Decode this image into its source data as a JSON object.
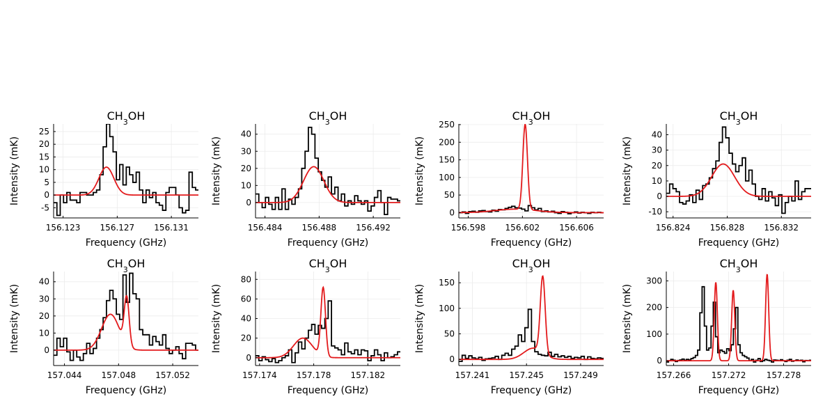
{
  "chart_data": [
    {
      "type": "line",
      "title": "CH3OH",
      "xlabel": "Frequency (GHz)",
      "ylabel": "Intensity (mK)",
      "xlim": [
        156.1223,
        156.133
      ],
      "ylim": [
        -9,
        28
      ],
      "xticks": [
        156.123,
        156.127,
        156.131
      ],
      "xtick_labels": [
        "156.123",
        "156.127",
        "156.131"
      ],
      "yticks": [
        -5,
        0,
        5,
        10,
        15,
        20,
        25
      ],
      "ytick_labels": [
        "-5",
        "0",
        "5",
        "10",
        "15",
        "20",
        "25"
      ],
      "grid": true,
      "series": [
        {
          "color": "#000000",
          "style": "step",
          "x0": 156.1223,
          "dx": 0.000244,
          "values": [
            -3,
            -8,
            0,
            -3,
            1,
            -2,
            -2,
            -3,
            1,
            1,
            0,
            0,
            1,
            2,
            8,
            19,
            28,
            23,
            17,
            6,
            12,
            4,
            11,
            8,
            5,
            9,
            2,
            -3,
            2,
            -1,
            1,
            -3,
            -4,
            -6,
            1,
            3,
            3,
            0,
            -5,
            -7,
            -6,
            9,
            3,
            2
          ]
        },
        {
          "color": "#e31a1c",
          "style": "line",
          "gaussians": [
            {
              "center": 156.1262,
              "amplitude": 11,
              "sigma": 0.00055
            }
          ],
          "baseline": 0
        }
      ]
    },
    {
      "type": "line",
      "title": "CH3OH",
      "xlabel": "Frequency (GHz)",
      "ylabel": "Intensity (mK)",
      "xlim": [
        156.4833,
        156.494
      ],
      "ylim": [
        -9,
        46
      ],
      "xticks": [
        156.484,
        156.488,
        156.492
      ],
      "xtick_labels": [
        "156.484",
        "156.488",
        "156.492"
      ],
      "yticks": [
        0,
        10,
        20,
        30,
        40
      ],
      "ytick_labels": [
        "0",
        "10",
        "20",
        "30",
        "40"
      ],
      "grid": true,
      "series": [
        {
          "color": "#000000",
          "style": "step",
          "x0": 156.4833,
          "dx": 0.000244,
          "values": [
            5,
            0,
            -3,
            3,
            -1,
            -4,
            3,
            -4,
            8,
            -4,
            2,
            -1,
            3,
            8,
            20,
            30,
            44,
            40,
            26,
            18,
            13,
            9,
            15,
            5,
            9,
            1,
            5,
            -2,
            1,
            -1,
            4,
            1,
            -1,
            1,
            -5,
            -2,
            3,
            7,
            0,
            -7,
            3,
            2,
            2,
            1
          ]
        },
        {
          "color": "#e31a1c",
          "style": "line",
          "gaussians": [
            {
              "center": 156.4876,
              "amplitude": 21,
              "sigma": 0.00075
            }
          ],
          "baseline": 0
        }
      ]
    },
    {
      "type": "line",
      "title": "CH3OH",
      "xlabel": "Frequency (GHz)",
      "ylabel": "Intensity (mK)",
      "xlim": [
        156.5973,
        156.608
      ],
      "ylim": [
        -15,
        252
      ],
      "xticks": [
        156.598,
        156.602,
        156.606
      ],
      "xtick_labels": [
        "156.598",
        "156.602",
        "156.606"
      ],
      "yticks": [
        0,
        50,
        100,
        150,
        200,
        250
      ],
      "ytick_labels": [
        "0",
        "50",
        "100",
        "150",
        "200",
        "250"
      ],
      "grid": true,
      "series": [
        {
          "color": "#000000",
          "style": "step",
          "x0": 156.5973,
          "dx": 0.000244,
          "values": [
            0,
            2,
            -2,
            3,
            4,
            1,
            5,
            6,
            3,
            2,
            7,
            4,
            9,
            8,
            12,
            15,
            18,
            14,
            13,
            10,
            5,
            20,
            14,
            8,
            12,
            3,
            5,
            2,
            4,
            0,
            -2,
            3,
            1,
            -3,
            0,
            2,
            -1,
            1,
            0,
            -2,
            1,
            0,
            1,
            0
          ]
        },
        {
          "color": "#e31a1c",
          "style": "line",
          "gaussians": [
            {
              "center": 156.6022,
              "amplitude": 242,
              "sigma": 0.00017
            },
            {
              "center": 156.6015,
              "amplitude": 10,
              "sigma": 0.0015
            }
          ],
          "baseline": 0
        }
      ]
    },
    {
      "type": "line",
      "title": "CH3OH",
      "xlabel": "Frequency (GHz)",
      "ylabel": "Intensity (mK)",
      "xlim": [
        156.8235,
        156.8342
      ],
      "ylim": [
        -14,
        47
      ],
      "xticks": [
        156.824,
        156.828,
        156.832
      ],
      "xtick_labels": [
        "156.824",
        "156.828",
        "156.832"
      ],
      "yticks": [
        -10,
        0,
        10,
        20,
        30,
        40
      ],
      "ytick_labels": [
        "-10",
        "0",
        "10",
        "20",
        "30",
        "40"
      ],
      "grid": true,
      "series": [
        {
          "color": "#000000",
          "style": "step",
          "x0": 156.8235,
          "dx": 0.000244,
          "values": [
            2,
            8,
            5,
            3,
            -4,
            -5,
            -3,
            1,
            -4,
            4,
            -2,
            7,
            8,
            12,
            18,
            23,
            35,
            45,
            38,
            28,
            21,
            16,
            20,
            25,
            10,
            17,
            8,
            0,
            -2,
            5,
            -3,
            3,
            -1,
            -6,
            1,
            -11,
            -4,
            0,
            -3,
            10,
            -2,
            3,
            5,
            5
          ]
        },
        {
          "color": "#e31a1c",
          "style": "line",
          "gaussians": [
            {
              "center": 156.8277,
              "amplitude": 21,
              "sigma": 0.00085
            }
          ],
          "baseline": 0
        }
      ]
    },
    {
      "type": "line",
      "title": "CH3OH",
      "xlabel": "Frequency (GHz)",
      "ylabel": "Intensity (mK)",
      "xlim": [
        157.0432,
        157.0539
      ],
      "ylim": [
        -9,
        46
      ],
      "xticks": [
        157.044,
        157.048,
        157.052
      ],
      "xtick_labels": [
        "157.044",
        "157.048",
        "157.052"
      ],
      "yticks": [
        0,
        10,
        20,
        30,
        40
      ],
      "ytick_labels": [
        "0",
        "10",
        "20",
        "30",
        "40"
      ],
      "grid": true,
      "series": [
        {
          "color": "#000000",
          "style": "step",
          "x0": 157.0432,
          "dx": 0.000244,
          "values": [
            -3,
            7,
            2,
            7,
            -1,
            -6,
            0,
            -4,
            -6,
            -2,
            4,
            -2,
            1,
            7,
            12,
            19,
            29,
            35,
            30,
            21,
            18,
            44,
            28,
            45,
            33,
            30,
            12,
            9,
            9,
            3,
            8,
            5,
            3,
            9,
            1,
            -2,
            0,
            2,
            -2,
            -5,
            4,
            4,
            3,
            0
          ]
        },
        {
          "color": "#e31a1c",
          "style": "line",
          "gaussians": [
            {
              "center": 157.0474,
              "amplitude": 21,
              "sigma": 0.00065
            },
            {
              "center": 157.0486,
              "amplitude": 28,
              "sigma": 0.00018
            }
          ],
          "baseline": 0
        }
      ]
    },
    {
      "type": "line",
      "title": "CH3OH",
      "xlabel": "Frequency (GHz)",
      "ylabel": "Intensity (mK)",
      "xlim": [
        157.1737,
        157.1844
      ],
      "ylim": [
        -8,
        88
      ],
      "xticks": [
        157.174,
        157.178,
        157.182
      ],
      "xtick_labels": [
        "157.174",
        "157.178",
        "157.182"
      ],
      "yticks": [
        0,
        20,
        40,
        60,
        80
      ],
      "ytick_labels": [
        "0",
        "20",
        "40",
        "60",
        "80"
      ],
      "grid": true,
      "series": [
        {
          "color": "#000000",
          "style": "step",
          "x0": 157.1737,
          "dx": 0.000244,
          "values": [
            2,
            -3,
            1,
            -2,
            -4,
            -1,
            -5,
            -3,
            0,
            2,
            8,
            -5,
            5,
            16,
            9,
            20,
            28,
            34,
            24,
            33,
            30,
            40,
            58,
            12,
            10,
            8,
            3,
            15,
            6,
            4,
            8,
            3,
            8,
            7,
            -3,
            2,
            8,
            3,
            -3,
            5,
            0,
            1,
            3,
            6
          ]
        },
        {
          "color": "#e31a1c",
          "style": "line",
          "gaussians": [
            {
              "center": 157.1772,
              "amplitude": 20,
              "sigma": 0.0007
            },
            {
              "center": 157.1787,
              "amplitude": 70,
              "sigma": 0.00017
            }
          ],
          "baseline": 0
        }
      ]
    },
    {
      "type": "line",
      "title": "CH3OH",
      "xlabel": "Frequency (GHz)",
      "ylabel": "Intensity (mK)",
      "xlim": [
        157.24,
        157.2507
      ],
      "ylim": [
        -12,
        172
      ],
      "xticks": [
        157.241,
        157.245,
        157.249
      ],
      "xtick_labels": [
        "157.241",
        "157.245",
        "157.249"
      ],
      "yticks": [
        0,
        50,
        100,
        150
      ],
      "ytick_labels": [
        "0",
        "50",
        "100",
        "150"
      ],
      "grid": true,
      "series": [
        {
          "color": "#000000",
          "style": "step",
          "x0": 157.24,
          "dx": 0.000244,
          "values": [
            -4,
            8,
            2,
            7,
            3,
            1,
            4,
            -2,
            1,
            2,
            3,
            6,
            0,
            8,
            12,
            8,
            20,
            26,
            48,
            35,
            62,
            98,
            35,
            15,
            10,
            8,
            7,
            14,
            6,
            10,
            5,
            7,
            4,
            6,
            2,
            4,
            3,
            6,
            0,
            5,
            2,
            1,
            3,
            2
          ]
        },
        {
          "color": "#e31a1c",
          "style": "line",
          "gaussians": [
            {
              "center": 157.2462,
              "amplitude": 150,
              "sigma": 0.00018
            },
            {
              "center": 157.2455,
              "amplitude": 22,
              "sigma": 0.0007
            }
          ],
          "baseline": 0
        }
      ]
    },
    {
      "type": "line",
      "title": "CH3OH",
      "xlabel": "Frequency (GHz)",
      "ylabel": "Intensity (mK)",
      "xlim": [
        157.2652,
        157.281
      ],
      "ylim": [
        -18,
        335
      ],
      "xticks": [
        157.266,
        157.272,
        157.278
      ],
      "xtick_labels": [
        "157.266",
        "157.272",
        "157.278"
      ],
      "yticks": [
        0,
        100,
        200,
        300
      ],
      "ytick_labels": [
        "0",
        "100",
        "200",
        "300"
      ],
      "grid": true,
      "series": [
        {
          "color": "#000000",
          "style": "step",
          "x0": 157.2652,
          "dx": 0.000244,
          "values": [
            -5,
            0,
            5,
            2,
            -3,
            1,
            3,
            6,
            2,
            5,
            3,
            8,
            12,
            20,
            40,
            180,
            278,
            130,
            40,
            48,
            130,
            220,
            90,
            30,
            40,
            35,
            28,
            45,
            38,
            60,
            120,
            200,
            60,
            30,
            20,
            15,
            10,
            0,
            5,
            -5,
            2,
            8,
            -3,
            0,
            5,
            2,
            0,
            -5,
            3,
            2,
            0,
            4,
            0,
            -3,
            2,
            5,
            -2,
            0,
            3,
            0,
            2,
            -4,
            1,
            0,
            2
          ]
        },
        {
          "color": "#e31a1c",
          "style": "line",
          "gaussians": [
            {
              "center": 157.2706,
              "amplitude": 295,
              "sigma": 0.00017
            },
            {
              "center": 157.2725,
              "amplitude": 265,
              "sigma": 0.00017
            },
            {
              "center": 157.2762,
              "amplitude": 325,
              "sigma": 0.00017
            }
          ],
          "baseline": 0
        }
      ]
    }
  ]
}
